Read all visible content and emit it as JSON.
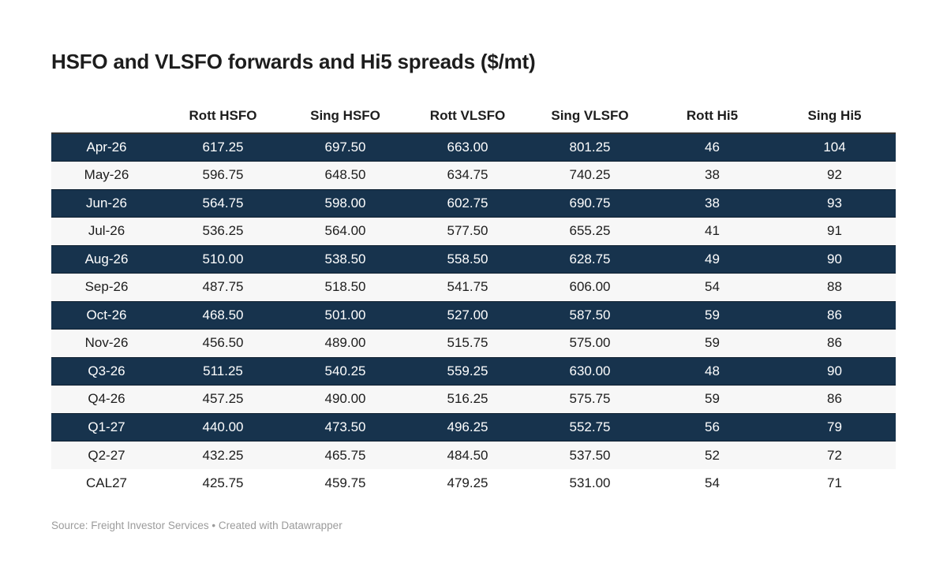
{
  "header": {
    "title": "HSFO and VLSFO forwards and Hi5 spreads ($/mt)"
  },
  "chart_data": {
    "type": "table",
    "title": "HSFO and VLSFO forwards and Hi5 spreads ($/mt)",
    "columns": [
      "",
      "Rott HSFO",
      "Sing HSFO",
      "Rott VLSFO",
      "Sing VLSFO",
      "Rott Hi5",
      "Sing Hi5"
    ],
    "rows": [
      {
        "label": "Apr-26",
        "values": [
          "617.25",
          "697.50",
          "663.00",
          "801.25",
          "46",
          "104"
        ],
        "highlighted": true
      },
      {
        "label": "May-26",
        "values": [
          "596.75",
          "648.50",
          "634.75",
          "740.25",
          "38",
          "92"
        ],
        "highlighted": false
      },
      {
        "label": "Jun-26",
        "values": [
          "564.75",
          "598.00",
          "602.75",
          "690.75",
          "38",
          "93"
        ],
        "highlighted": true
      },
      {
        "label": "Jul-26",
        "values": [
          "536.25",
          "564.00",
          "577.50",
          "655.25",
          "41",
          "91"
        ],
        "highlighted": false
      },
      {
        "label": "Aug-26",
        "values": [
          "510.00",
          "538.50",
          "558.50",
          "628.75",
          "49",
          "90"
        ],
        "highlighted": true
      },
      {
        "label": "Sep-26",
        "values": [
          "487.75",
          "518.50",
          "541.75",
          "606.00",
          "54",
          "88"
        ],
        "highlighted": false
      },
      {
        "label": "Oct-26",
        "values": [
          "468.50",
          "501.00",
          "527.00",
          "587.50",
          "59",
          "86"
        ],
        "highlighted": true
      },
      {
        "label": "Nov-26",
        "values": [
          "456.50",
          "489.00",
          "515.75",
          "575.00",
          "59",
          "86"
        ],
        "highlighted": false
      },
      {
        "label": "Q3-26",
        "values": [
          "511.25",
          "540.25",
          "559.25",
          "630.00",
          "48",
          "90"
        ],
        "highlighted": true
      },
      {
        "label": "Q4-26",
        "values": [
          "457.25",
          "490.00",
          "516.25",
          "575.75",
          "59",
          "86"
        ],
        "highlighted": false
      },
      {
        "label": "Q1-27",
        "values": [
          "440.00",
          "473.50",
          "496.25",
          "552.75",
          "56",
          "79"
        ],
        "highlighted": true
      },
      {
        "label": "Q2-27",
        "values": [
          "432.25",
          "465.75",
          "484.50",
          "537.50",
          "52",
          "72"
        ],
        "highlighted": false
      },
      {
        "label": "CAL27",
        "values": [
          "425.75",
          "459.75",
          "479.25",
          "531.00",
          "54",
          "71"
        ],
        "highlighted": false
      }
    ]
  },
  "footer": {
    "source_text": "Source: Freight Investor Services",
    "separator": "•",
    "credit_text": "Created with Datawrapper"
  },
  "colors": {
    "highlight_row_bg": "#17334d",
    "highlight_row_text": "#ffffff",
    "zebra_row_bg": "#f7f7f7",
    "header_rule": "#333333",
    "body_text": "#1d1d1d",
    "footer_text": "#9b9b9b"
  }
}
